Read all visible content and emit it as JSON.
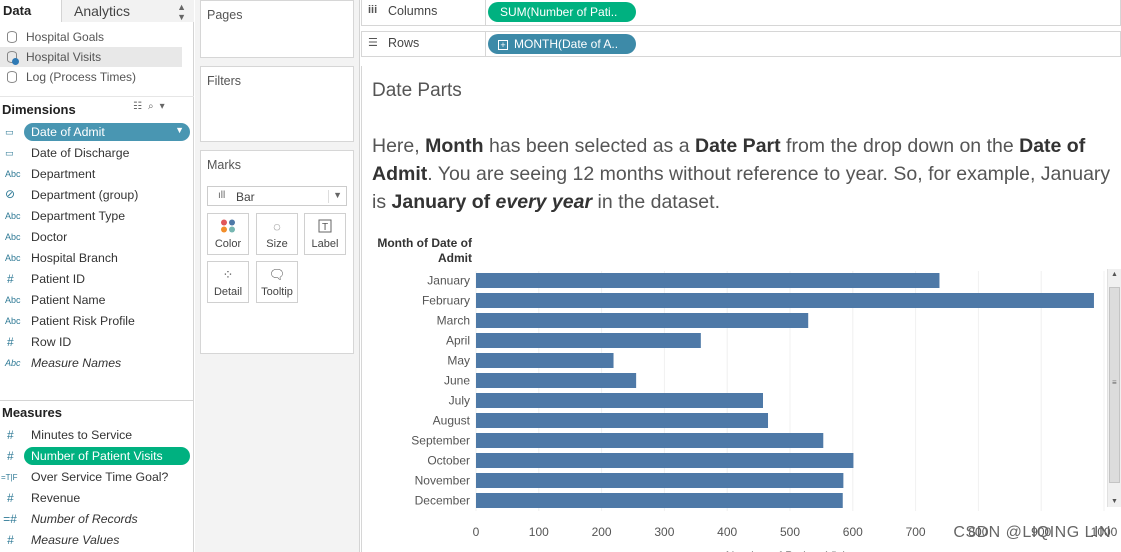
{
  "data_pane": {
    "tabs": [
      {
        "label": "Data"
      },
      {
        "label": "Analytics"
      }
    ],
    "datasources": [
      {
        "label": "Hospital Goals",
        "active": false
      },
      {
        "label": "Hospital Visits",
        "active": true
      },
      {
        "label": "Log (Process Times)",
        "active": false
      }
    ],
    "dimensions_header": "Dimensions",
    "dimensions": [
      {
        "label": "Date of Admit",
        "type": "date",
        "selected": true
      },
      {
        "label": "Date of Discharge",
        "type": "date"
      },
      {
        "label": "Department",
        "type": "abc"
      },
      {
        "label": "Department (group)",
        "type": "group"
      },
      {
        "label": "Department Type",
        "type": "abc"
      },
      {
        "label": "Doctor",
        "type": "abc"
      },
      {
        "label": "Hospital Branch",
        "type": "abc"
      },
      {
        "label": "Patient ID",
        "type": "hash"
      },
      {
        "label": "Patient Name",
        "type": "abc"
      },
      {
        "label": "Patient Risk Profile",
        "type": "abc"
      },
      {
        "label": "Row ID",
        "type": "hash"
      },
      {
        "label": "Measure Names",
        "type": "abc",
        "italic": true
      }
    ],
    "measures_header": "Measures",
    "measures": [
      {
        "label": "Minutes to Service",
        "type": "hash"
      },
      {
        "label": "Number of Patient Visits",
        "type": "hash",
        "selected": true
      },
      {
        "label": "Over Service Time Goal?",
        "type": "tf"
      },
      {
        "label": "Revenue",
        "type": "hash"
      },
      {
        "label": "Number of Records",
        "type": "hash-calc",
        "italic": true
      },
      {
        "label": "Measure Values",
        "type": "hash",
        "italic": true
      }
    ]
  },
  "cards": {
    "pages": "Pages",
    "filters": "Filters",
    "marks": "Marks",
    "mark_type": "Bar",
    "mark_buttons": [
      {
        "label": "Color"
      },
      {
        "label": "Size"
      },
      {
        "label": "Label"
      },
      {
        "label": "Detail"
      },
      {
        "label": "Tooltip"
      }
    ]
  },
  "shelves": {
    "columns_label": "Columns",
    "columns_pill": "SUM(Number of Pati..",
    "rows_label": "Rows",
    "rows_pill": "MONTH(Date of A.."
  },
  "view": {
    "title": "Date Parts",
    "caption": {
      "p1": "Here, ",
      "b1": "Month",
      "p2": " has been selected as a ",
      "b2": "Date Part",
      "p3": " from the drop down on the ",
      "b3": "Date of Admit",
      "p4": ". You are seeing 12 months without reference to year.  So, for example, January is ",
      "b4a": "January of ",
      "b4b": "every year",
      "p5": " in the dataset."
    },
    "row_header": "Month of Date of Admit"
  },
  "chart_data": {
    "type": "bar",
    "orientation": "horizontal",
    "categories": [
      "January",
      "February",
      "March",
      "April",
      "May",
      "June",
      "July",
      "August",
      "September",
      "October",
      "November",
      "December"
    ],
    "values": [
      738,
      984,
      529,
      358,
      219,
      255,
      457,
      465,
      553,
      601,
      585,
      584
    ],
    "xlabel": "Number of Patient Visits",
    "ylabel": "Month of Date of Admit",
    "xlim": [
      0,
      1000
    ],
    "xticks": [
      0,
      100,
      200,
      300,
      400,
      500,
      600,
      700,
      800,
      900,
      1000
    ],
    "bar_color": "#4e79a7",
    "grid": true
  },
  "watermark": "CSDN @LIQING LIN"
}
